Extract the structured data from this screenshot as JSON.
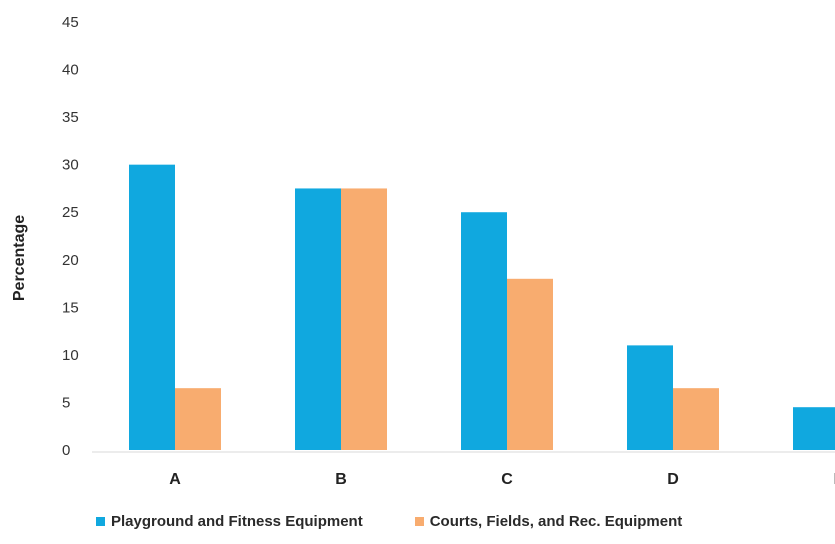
{
  "chart_data": {
    "type": "bar",
    "title": "",
    "xlabel": "",
    "ylabel": "Percentage",
    "categories": [
      "A",
      "B",
      "C",
      "D",
      "E"
    ],
    "ylim": [
      0,
      45
    ],
    "yticks": [
      0,
      5,
      10,
      15,
      20,
      25,
      30,
      35,
      40,
      45
    ],
    "grid": false,
    "legend_position": "bottom",
    "series": [
      {
        "name": "Playground and Fitness Equipment",
        "color": "#10a8df",
        "values": [
          30,
          27.5,
          25,
          11,
          4.5
        ]
      },
      {
        "name": "Courts, Fields, and Rec. Equipment",
        "color": "#f8ac6f",
        "values": [
          6.5,
          27.5,
          18,
          6.5,
          null
        ]
      }
    ]
  }
}
